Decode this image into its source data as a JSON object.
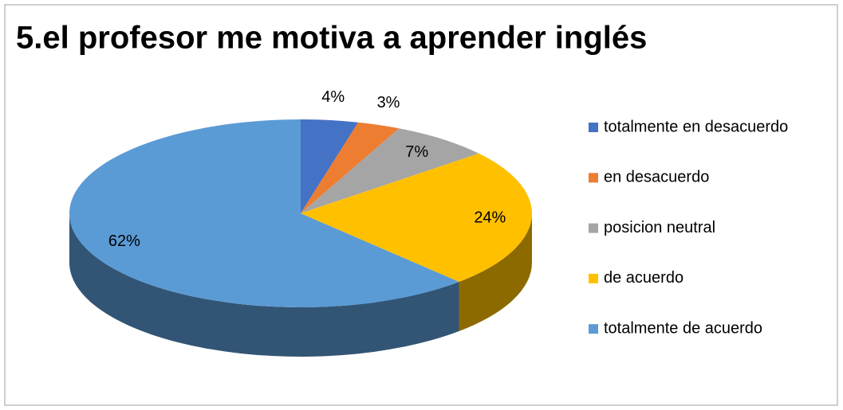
{
  "chart_data": {
    "type": "pie",
    "title": "5.el profesor me motiva a aprender inglés",
    "categories": [
      "totalmente en desacuerdo",
      "en desacuerdo",
      "posicion neutral",
      "de acuerdo",
      "totalmente de acuerdo"
    ],
    "values": [
      4,
      3,
      7,
      24,
      62
    ],
    "value_labels": [
      "4%",
      "3%",
      "7%",
      "24%",
      "62%"
    ],
    "colors": [
      "#4472c4",
      "#ed7d31",
      "#a5a5a5",
      "#ffc000",
      "#5b9bd5"
    ],
    "legend": "right"
  }
}
